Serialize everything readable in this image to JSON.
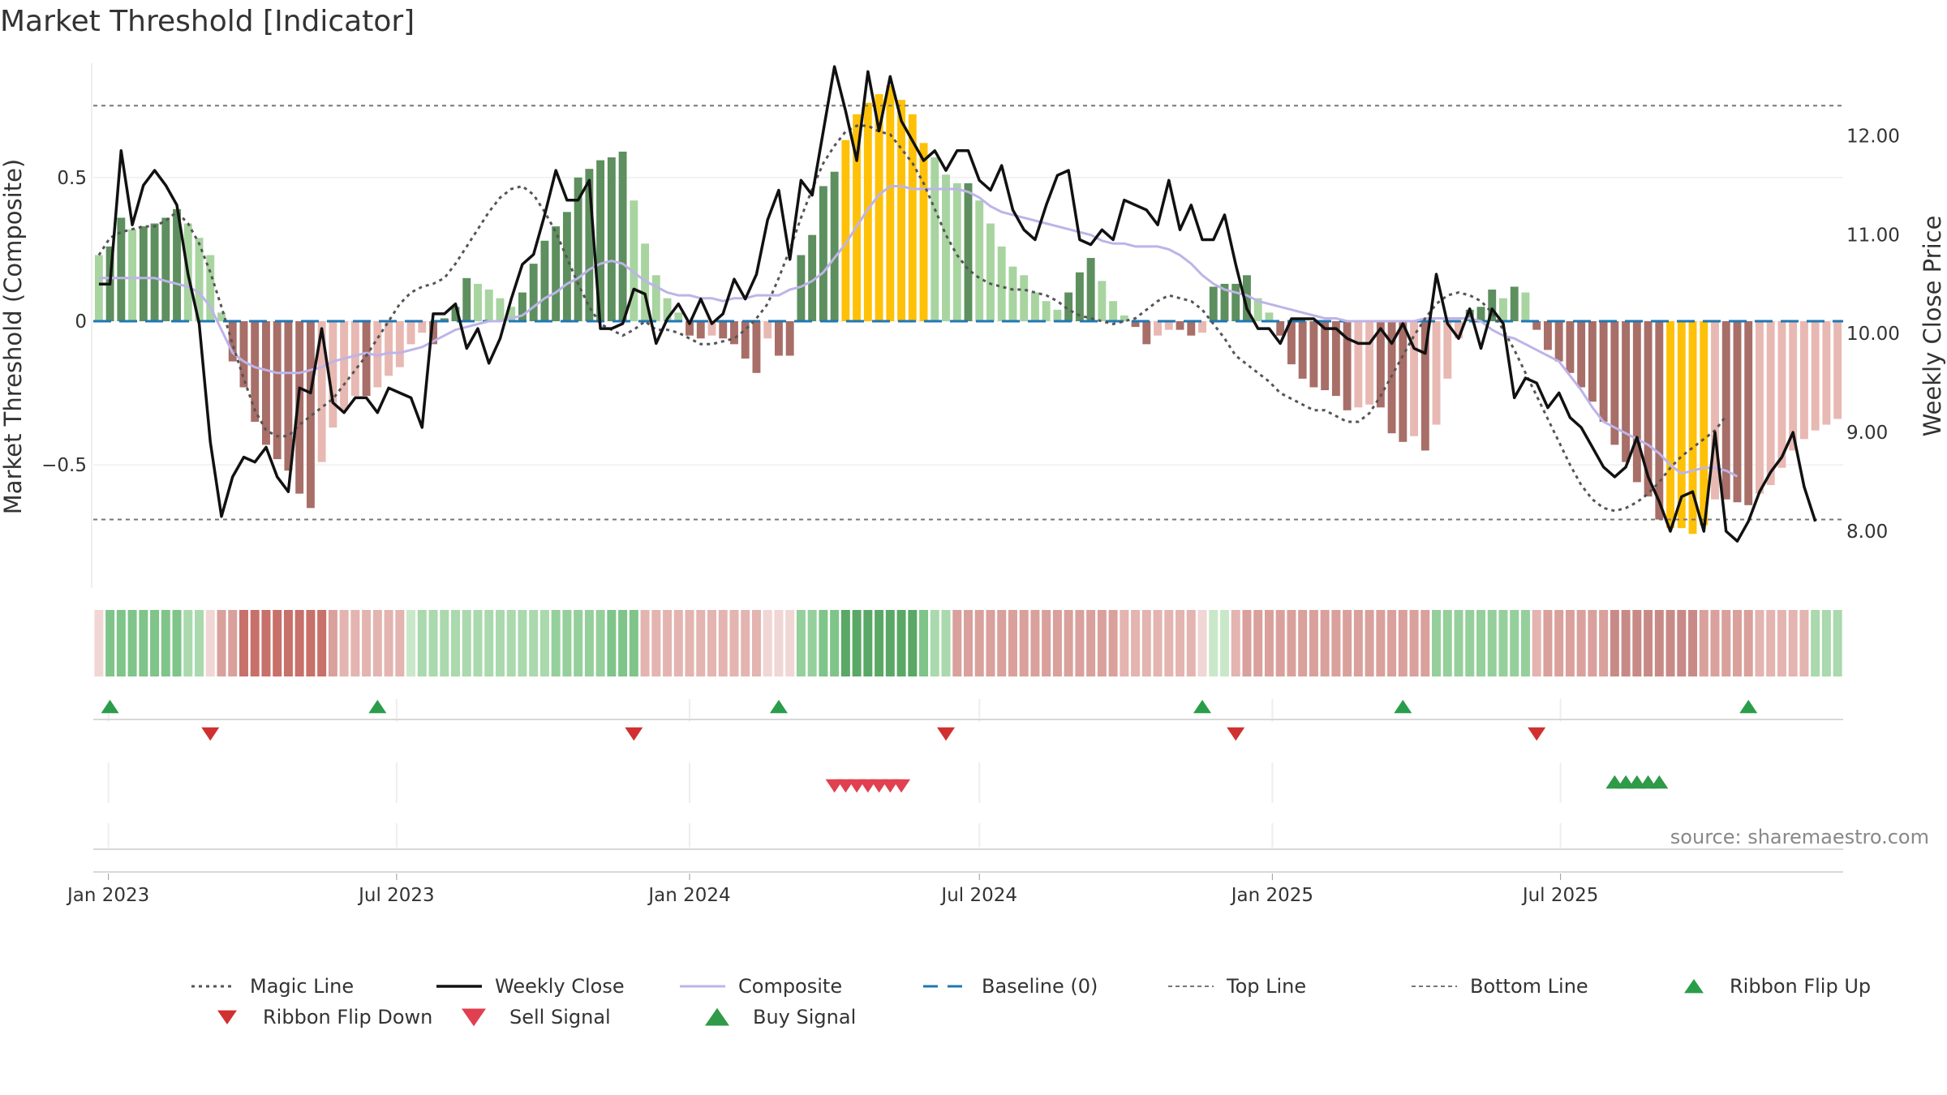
{
  "chart_data": {
    "type": "bar",
    "title": "Market Threshold [Indicator]",
    "ylabel": "Market Threshold (Composite)",
    "y2label": "Weekly Close Price",
    "ylim": [
      -0.92,
      0.92
    ],
    "y2lim": [
      7.45,
      12.8
    ],
    "yticks": [
      {
        "v": 0.5,
        "label": "0.5"
      },
      {
        "v": 0,
        "label": "0"
      },
      {
        "v": -0.5,
        "label": "−0.5"
      }
    ],
    "y2ticks": [
      {
        "v": 12,
        "label": "12.00"
      },
      {
        "v": 11,
        "label": "11.00"
      },
      {
        "v": 10,
        "label": "10.00"
      },
      {
        "v": 9,
        "label": "9.00"
      },
      {
        "v": 8,
        "label": "8.00"
      }
    ],
    "top_line": 0.75,
    "bottom_line": -0.69,
    "source": "source: sharemaestro.com",
    "x_start": "2022-12-26",
    "x_step_days": 7,
    "xticks": [
      {
        "date": "2023-01-01",
        "label": "Jan 2023"
      },
      {
        "date": "2023-07-01",
        "label": "Jul 2023"
      },
      {
        "date": "2024-01-01",
        "label": "Jan 2024"
      },
      {
        "date": "2024-07-01",
        "label": "Jul 2024"
      },
      {
        "date": "2025-01-01",
        "label": "Jan 2025"
      },
      {
        "date": "2025-07-01",
        "label": "Jul 2025"
      }
    ],
    "composite_bars": [
      0.23,
      0.26,
      0.36,
      0.32,
      0.33,
      0.34,
      0.36,
      0.39,
      0.34,
      0.29,
      0.23,
      0.03,
      -0.14,
      -0.23,
      -0.35,
      -0.43,
      -0.48,
      -0.52,
      -0.6,
      -0.65,
      -0.49,
      -0.37,
      -0.31,
      -0.26,
      -0.26,
      -0.23,
      -0.19,
      -0.16,
      -0.08,
      -0.04,
      -0.08,
      0.01,
      0.05,
      0.15,
      0.13,
      0.11,
      0.08,
      0.05,
      0.1,
      0.2,
      0.28,
      0.33,
      0.38,
      0.5,
      0.53,
      0.56,
      0.57,
      0.59,
      0.42,
      0.27,
      0.16,
      0.08,
      0.03,
      -0.05,
      -0.06,
      -0.05,
      -0.06,
      -0.08,
      -0.13,
      -0.18,
      -0.06,
      -0.12,
      -0.12,
      0.23,
      0.3,
      0.47,
      0.52,
      0.63,
      0.72,
      0.76,
      0.79,
      0.82,
      0.77,
      0.72,
      0.62,
      0.57,
      0.51,
      0.48,
      0.48,
      0.42,
      0.34,
      0.26,
      0.19,
      0.16,
      0.1,
      0.07,
      0.04,
      0.1,
      0.17,
      0.22,
      0.14,
      0.07,
      0.02,
      -0.02,
      -0.08,
      -0.05,
      -0.03,
      -0.03,
      -0.05,
      -0.04,
      0.12,
      0.13,
      0.13,
      0.16,
      0.08,
      0.03,
      -0.05,
      -0.15,
      -0.2,
      -0.23,
      -0.24,
      -0.26,
      -0.31,
      -0.3,
      -0.29,
      -0.3,
      -0.39,
      -0.42,
      -0.4,
      -0.45,
      -0.36,
      -0.2,
      -0.06,
      0.04,
      0.05,
      0.11,
      0.08,
      0.12,
      0.1,
      -0.03,
      -0.1,
      -0.14,
      -0.18,
      -0.23,
      -0.28,
      -0.35,
      -0.43,
      -0.49,
      -0.56,
      -0.61,
      -0.69,
      -0.72,
      -0.72,
      -0.74,
      -0.71,
      -0.62,
      -0.62,
      -0.63,
      -0.64,
      -0.6,
      -0.57,
      -0.51,
      -0.45,
      -0.41,
      -0.38,
      -0.36,
      -0.34
    ],
    "bar_colors": {
      "strong_pos": "#5e8f5e",
      "weak_pos": "#a8d4a0",
      "strong_neg": "#a86e68",
      "weak_neg": "#e8b8b2",
      "peak": "#ffc107",
      "peak_threshold": 0.6
    },
    "weekly_close": [
      10.5,
      10.5,
      11.85,
      11.1,
      11.5,
      11.65,
      11.5,
      11.3,
      10.6,
      10.1,
      8.9,
      8.15,
      8.55,
      8.75,
      8.7,
      8.85,
      8.55,
      8.4,
      9.45,
      9.4,
      10.05,
      9.3,
      9.2,
      9.35,
      9.35,
      9.2,
      9.45,
      9.4,
      9.35,
      9.05,
      10.2,
      10.2,
      10.3,
      9.85,
      10.05,
      9.7,
      9.95,
      10.35,
      10.7,
      10.8,
      11.2,
      11.65,
      11.35,
      11.35,
      11.55,
      10.05,
      10.05,
      10.1,
      10.45,
      10.4,
      9.9,
      10.15,
      10.3,
      10.1,
      10.35,
      10.1,
      10.2,
      10.55,
      10.35,
      10.6,
      11.15,
      11.45,
      10.75,
      11.55,
      11.4,
      12.05,
      12.7,
      12.25,
      11.75,
      12.65,
      12.05,
      12.6,
      12.15,
      11.95,
      11.75,
      11.85,
      11.65,
      11.85,
      11.85,
      11.55,
      11.45,
      11.7,
      11.25,
      11.05,
      10.95,
      11.3,
      11.6,
      11.65,
      10.95,
      10.9,
      11.05,
      10.95,
      11.35,
      11.3,
      11.25,
      11.1,
      11.55,
      11.05,
      11.3,
      10.95,
      10.95,
      11.2,
      10.7,
      10.25,
      10.05,
      10.05,
      9.9,
      10.15,
      10.15,
      10.15,
      10.05,
      10.05,
      9.95,
      9.9,
      9.9,
      10.05,
      9.9,
      10.1,
      9.85,
      9.8,
      10.6,
      10.1,
      9.95,
      10.25,
      9.85,
      10.25,
      10.1,
      9.35,
      9.55,
      9.5,
      9.25,
      9.4,
      9.15,
      9.05,
      8.85,
      8.65,
      8.55,
      8.65,
      8.95,
      8.55,
      8.3,
      8.0,
      8.35,
      8.4,
      8.0,
      9.0,
      8.0,
      7.9,
      8.1,
      8.4,
      8.6,
      8.75,
      9.0,
      8.45,
      8.1
    ],
    "magic_line": [
      0.23,
      0.29,
      0.31,
      0.32,
      0.33,
      0.33,
      0.35,
      0.38,
      0.34,
      0.27,
      0.17,
      0.05,
      -0.08,
      -0.2,
      -0.31,
      -0.38,
      -0.4,
      -0.4,
      -0.36,
      -0.33,
      -0.3,
      -0.27,
      -0.22,
      -0.17,
      -0.12,
      -0.06,
      0.0,
      0.06,
      0.1,
      0.12,
      0.13,
      0.15,
      0.2,
      0.26,
      0.32,
      0.38,
      0.43,
      0.46,
      0.47,
      0.44,
      0.38,
      0.31,
      0.22,
      0.13,
      0.05,
      -0.01,
      -0.03,
      -0.05,
      -0.03,
      0.0,
      -0.03,
      -0.03,
      -0.04,
      -0.06,
      -0.08,
      -0.08,
      -0.07,
      -0.06,
      -0.03,
      0.01,
      0.06,
      0.15,
      0.25,
      0.36,
      0.46,
      0.55,
      0.61,
      0.66,
      0.68,
      0.68,
      0.66,
      0.65,
      0.6,
      0.55,
      0.48,
      0.39,
      0.3,
      0.23,
      0.18,
      0.15,
      0.13,
      0.12,
      0.11,
      0.11,
      0.1,
      0.09,
      0.07,
      0.04,
      0.02,
      0.01,
      0.0,
      -0.01,
      0.0,
      0.01,
      0.04,
      0.07,
      0.09,
      0.08,
      0.07,
      0.04,
      -0.01,
      -0.06,
      -0.12,
      -0.15,
      -0.18,
      -0.21,
      -0.25,
      -0.27,
      -0.29,
      -0.31,
      -0.31,
      -0.33,
      -0.35,
      -0.35,
      -0.32,
      -0.26,
      -0.19,
      -0.12,
      -0.05,
      0.01,
      0.06,
      0.09,
      0.1,
      0.09,
      0.07,
      0.03,
      -0.03,
      -0.1,
      -0.18,
      -0.26,
      -0.34,
      -0.42,
      -0.5,
      -0.57,
      -0.62,
      -0.65,
      -0.66,
      -0.65,
      -0.63,
      -0.6,
      -0.56,
      -0.51,
      -0.47,
      -0.44,
      -0.41,
      -0.38,
      -0.33
    ],
    "composite_line": [
      0.15,
      0.15,
      0.15,
      0.15,
      0.15,
      0.15,
      0.14,
      0.13,
      0.12,
      0.1,
      0.05,
      -0.03,
      -0.11,
      -0.14,
      -0.16,
      -0.17,
      -0.18,
      -0.18,
      -0.18,
      -0.17,
      -0.16,
      -0.14,
      -0.13,
      -0.12,
      -0.11,
      -0.12,
      -0.11,
      -0.11,
      -0.1,
      -0.09,
      -0.07,
      -0.05,
      -0.03,
      -0.02,
      -0.01,
      0.0,
      0.0,
      0.01,
      0.02,
      0.05,
      0.08,
      0.1,
      0.13,
      0.15,
      0.18,
      0.2,
      0.21,
      0.2,
      0.17,
      0.14,
      0.12,
      0.1,
      0.09,
      0.09,
      0.08,
      0.08,
      0.07,
      0.08,
      0.08,
      0.09,
      0.09,
      0.09,
      0.11,
      0.12,
      0.14,
      0.17,
      0.22,
      0.27,
      0.33,
      0.39,
      0.44,
      0.47,
      0.47,
      0.46,
      0.46,
      0.46,
      0.46,
      0.46,
      0.45,
      0.43,
      0.4,
      0.38,
      0.37,
      0.36,
      0.35,
      0.34,
      0.33,
      0.32,
      0.31,
      0.3,
      0.28,
      0.27,
      0.27,
      0.26,
      0.26,
      0.26,
      0.25,
      0.23,
      0.2,
      0.16,
      0.13,
      0.11,
      0.1,
      0.09,
      0.07,
      0.06,
      0.05,
      0.04,
      0.03,
      0.02,
      0.01,
      0.01,
      0.0,
      0.0,
      0.0,
      0.0,
      0.0,
      0.0,
      0.0,
      0.01,
      0.01,
      0.01,
      0.01,
      0.01,
      0.0,
      -0.03,
      -0.05,
      -0.06,
      -0.08,
      -0.1,
      -0.12,
      -0.14,
      -0.19,
      -0.24,
      -0.3,
      -0.35,
      -0.37,
      -0.39,
      -0.41,
      -0.43,
      -0.46,
      -0.5,
      -0.53,
      -0.52,
      -0.51,
      -0.51,
      -0.52,
      -0.54
    ],
    "ribbon_colors": [
      "#f0d6d4",
      "#7fc489",
      "#7fc489",
      "#7fc489",
      "#7fc489",
      "#7fc489",
      "#7fc489",
      "#7fc489",
      "#a9d9ad",
      "#a9d9ad",
      "#f0d6d4",
      "#d9a09c",
      "#d9a09c",
      "#c8706a",
      "#c8706a",
      "#c8706a",
      "#c8706a",
      "#c8706a",
      "#c8706a",
      "#c8706a",
      "#c8706a",
      "#d9a09c",
      "#e3b4b0",
      "#e3b4b0",
      "#e3b4b0",
      "#e3b4b0",
      "#e3b4b0",
      "#e3b4b0",
      "#c9e8c9",
      "#a9d9ad",
      "#a9d9ad",
      "#a9d9ad",
      "#a9d9ad",
      "#a9d9ad",
      "#a9d9ad",
      "#a9d9ad",
      "#a9d9ad",
      "#a9d9ad",
      "#a9d9ad",
      "#a9d9ad",
      "#a9d9ad",
      "#95cf9b",
      "#95cf9b",
      "#95cf9b",
      "#95cf9b",
      "#95cf9b",
      "#7fc489",
      "#7fc489",
      "#7fc489",
      "#e3b4b0",
      "#e3b4b0",
      "#e3b4b0",
      "#e3b4b0",
      "#e3b4b0",
      "#e3b4b0",
      "#e3b4b0",
      "#e3b4b0",
      "#e3b4b0",
      "#e3b4b0",
      "#e3b4b0",
      "#f0d6d4",
      "#f0d6d4",
      "#f0d6d4",
      "#95cf9b",
      "#95cf9b",
      "#7fc489",
      "#7fc489",
      "#5aa865",
      "#5aa865",
      "#5aa865",
      "#5aa865",
      "#5aa865",
      "#5aa865",
      "#5aa865",
      "#7fc489",
      "#a9d9ad",
      "#a9d9ad",
      "#d9a09c",
      "#d9a09c",
      "#d9a09c",
      "#d9a09c",
      "#d9a09c",
      "#d9a09c",
      "#d9a09c",
      "#d9a09c",
      "#d9a09c",
      "#d9a09c",
      "#d9a09c",
      "#d9a09c",
      "#d9a09c",
      "#d9a09c",
      "#d9a09c",
      "#e3b4b0",
      "#e3b4b0",
      "#e3b4b0",
      "#e3b4b0",
      "#e3b4b0",
      "#e3b4b0",
      "#e3b4b0",
      "#f0d6d4",
      "#c9e8c9",
      "#c9e8c9",
      "#e3b4b0",
      "#d9a09c",
      "#d9a09c",
      "#d9a09c",
      "#d9a09c",
      "#d9a09c",
      "#d9a09c",
      "#d9a09c",
      "#d9a09c",
      "#d9a09c",
      "#d9a09c",
      "#d9a09c",
      "#d9a09c",
      "#d9a09c",
      "#d9a09c",
      "#d9a09c",
      "#d9a09c",
      "#d9a09c",
      "#95cf9b",
      "#95cf9b",
      "#95cf9b",
      "#95cf9b",
      "#95cf9b",
      "#95cf9b",
      "#95cf9b",
      "#95cf9b",
      "#95cf9b",
      "#e3b4b0",
      "#d9a09c",
      "#d9a09c",
      "#d9a09c",
      "#d9a09c",
      "#d9a09c",
      "#d9a09c",
      "#c88a86",
      "#c88a86",
      "#c88a86",
      "#c88a86",
      "#c88a86",
      "#c88a86",
      "#c88a86",
      "#c88a86",
      "#d9a09c",
      "#d9a09c",
      "#d9a09c",
      "#d9a09c",
      "#d9a09c",
      "#e3b4b0",
      "#e3b4b0",
      "#e3b4b0",
      "#e3b4b0",
      "#e3b4b0",
      "#a9d9ad",
      "#a9d9ad",
      "#a9d9ad"
    ],
    "ribbon_flip_up": [
      1,
      25,
      61,
      99,
      117,
      148
    ],
    "ribbon_flip_down": [
      10,
      48,
      76,
      102,
      129
    ],
    "sell_signals": [
      66,
      67,
      68,
      69,
      70,
      71,
      72
    ],
    "buy_signals": [
      136,
      137,
      138,
      139,
      140
    ],
    "colors": {
      "magic": "#555555",
      "close": "#111111",
      "composite": "#bdb4e8",
      "baseline": "#1f77b4",
      "top_line": "#777777",
      "flip_up": "#2a9d4a",
      "flip_down": "#d03030",
      "sell": "#e04050",
      "buy": "#2f9a47",
      "grid": "#e8e8e8"
    },
    "legend": [
      {
        "key": "magic",
        "label": "Magic Line"
      },
      {
        "key": "close",
        "label": "Weekly Close"
      },
      {
        "key": "composite",
        "label": "Composite"
      },
      {
        "key": "baseline",
        "label": "Baseline (0)"
      },
      {
        "key": "top",
        "label": "Top Line"
      },
      {
        "key": "bottom",
        "label": "Bottom Line"
      },
      {
        "key": "flipup",
        "label": "Ribbon Flip Up"
      },
      {
        "key": "flipdown",
        "label": "Ribbon Flip Down"
      },
      {
        "key": "sell",
        "label": "Sell Signal"
      },
      {
        "key": "buy",
        "label": "Buy Signal"
      }
    ]
  }
}
